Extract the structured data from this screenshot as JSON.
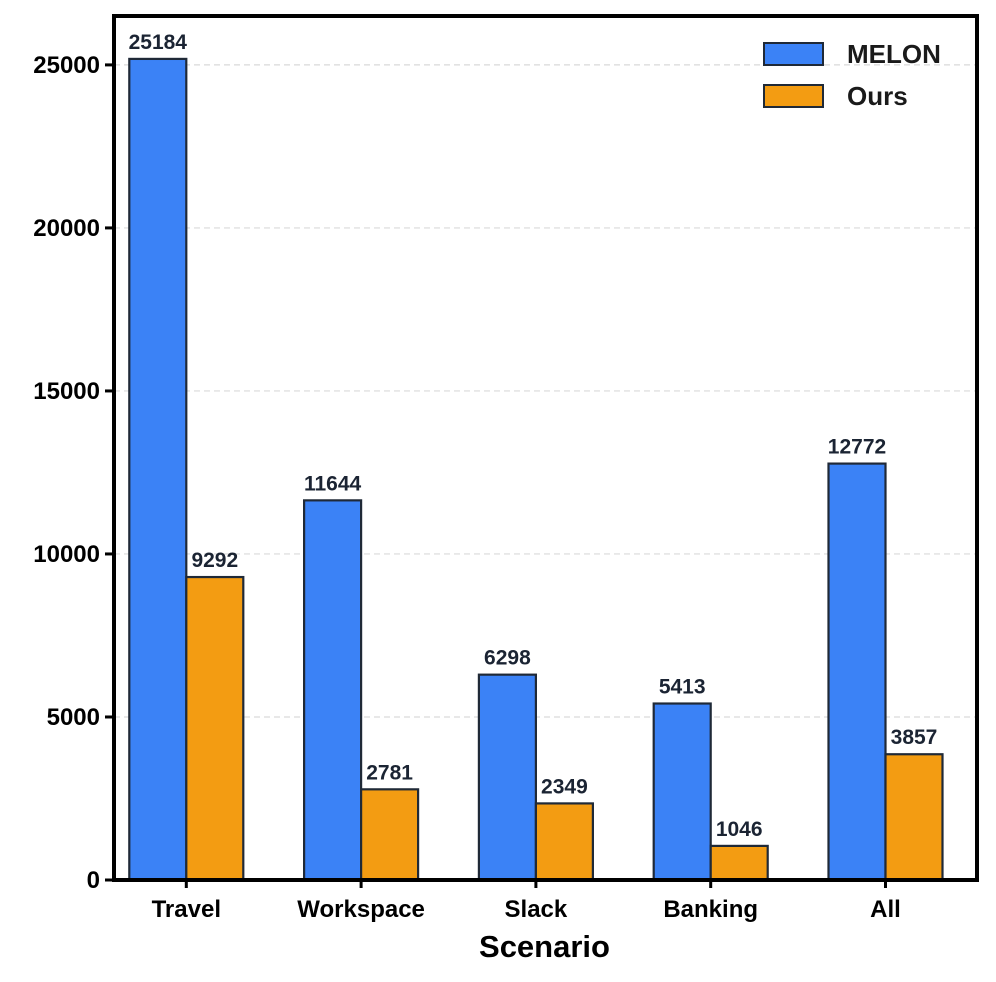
{
  "chart_data": {
    "type": "bar",
    "title": "",
    "xlabel": "Scenario",
    "ylabel": "",
    "categories": [
      "Travel",
      "Workspace",
      "Slack",
      "Banking",
      "All"
    ],
    "series": [
      {
        "name": "MELON",
        "values": [
          25184,
          11644,
          6298,
          5413,
          12772
        ],
        "color": "#3b82f6"
      },
      {
        "name": "Ours",
        "values": [
          9292,
          2781,
          2349,
          1046,
          3857
        ],
        "color": "#f39c12"
      }
    ],
    "ylim": [
      0,
      26500
    ],
    "yticks": [
      0,
      5000,
      10000,
      15000,
      20000,
      25000
    ],
    "grid": "horizontal-dashed",
    "legend": "top-right",
    "bar_edge_color": "#1f2937"
  }
}
